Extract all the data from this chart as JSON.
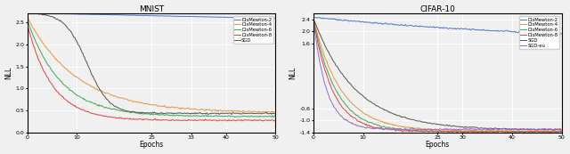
{
  "mnist_title": "MNIST",
  "cifar_title": "CIFAR-10",
  "xlabel": "Epochs",
  "mnist_ylabel": "NLL",
  "cifar_ylabel": "NLL",
  "x_max": 50,
  "mnist_ylim": [
    0.0,
    2.7
  ],
  "cifar_ylim": [
    -1.4,
    2.6
  ],
  "legends_mnist": [
    "DisMewton-2",
    "DisMewton-4",
    "DisMewton-6",
    "DisMewton-8",
    "SGD"
  ],
  "legends_cifar": [
    "DisMewton-2",
    "DisMewton-4",
    "DisMewton-6",
    "DisMewton-8",
    "SGD",
    "SGD-eu"
  ],
  "colors": {
    "dis2": "#4878cf",
    "dis4": "#e8963a",
    "dis6": "#3aaa5a",
    "dis8": "#e84040",
    "sgd": "#555555",
    "sgd_eu": "#9b6bc4"
  },
  "background": "#f0f0f0",
  "lw": 0.7
}
